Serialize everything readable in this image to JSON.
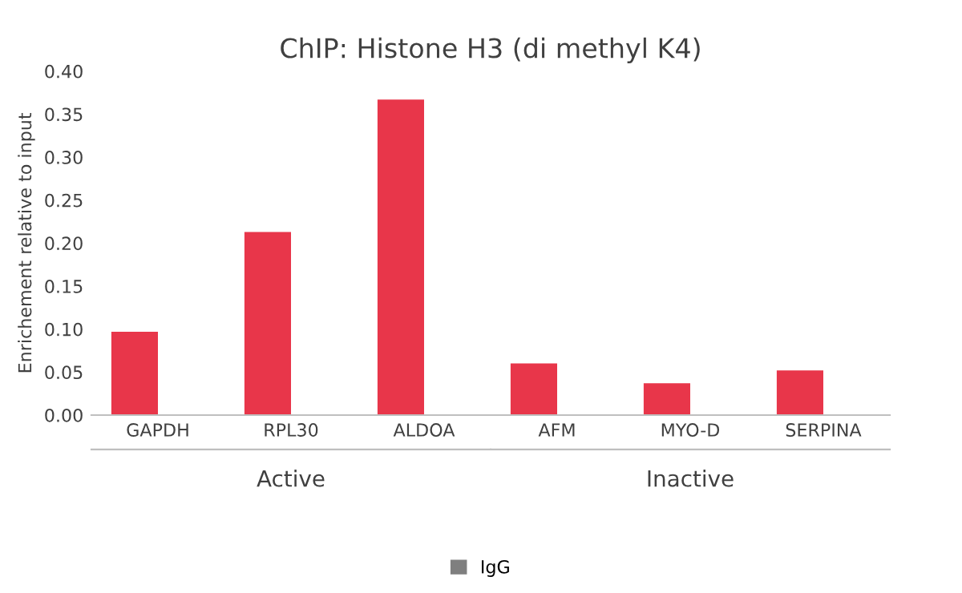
{
  "chart_data": {
    "type": "bar",
    "title": "ChIP: Histone H3 (di methyl K4)",
    "ylabel": "Enrichement relative to input",
    "categories": [
      "GAPDH",
      "RPL30",
      "ALDOA",
      "AFM",
      "MYO-D",
      "SERPINA"
    ],
    "series": [
      {
        "color": "#e8364a",
        "values": [
          0.097,
          0.213,
          0.367,
          0.06,
          0.037,
          0.052
        ]
      },
      {
        "name": "IgG",
        "color": "#7f7f7f",
        "values": [
          0,
          0,
          0,
          0,
          0,
          0
        ]
      }
    ],
    "ylim": [
      0,
      0.4
    ],
    "yticks": [
      {
        "value": 0,
        "label": "0.00"
      },
      {
        "value": 0.05,
        "label": "0.05"
      },
      {
        "value": 0.1,
        "label": "0.10"
      },
      {
        "value": 0.15,
        "label": "0.15"
      },
      {
        "value": 0.2,
        "label": "0.20"
      },
      {
        "value": 0.25,
        "label": "0.25"
      },
      {
        "value": 0.3,
        "label": "0.30"
      },
      {
        "value": 0.35,
        "label": "0.35"
      },
      {
        "value": 0.4,
        "label": "0.40"
      }
    ],
    "annotations": [
      "Active",
      "Inactive"
    ],
    "legend": "bottom",
    "grid": false
  }
}
